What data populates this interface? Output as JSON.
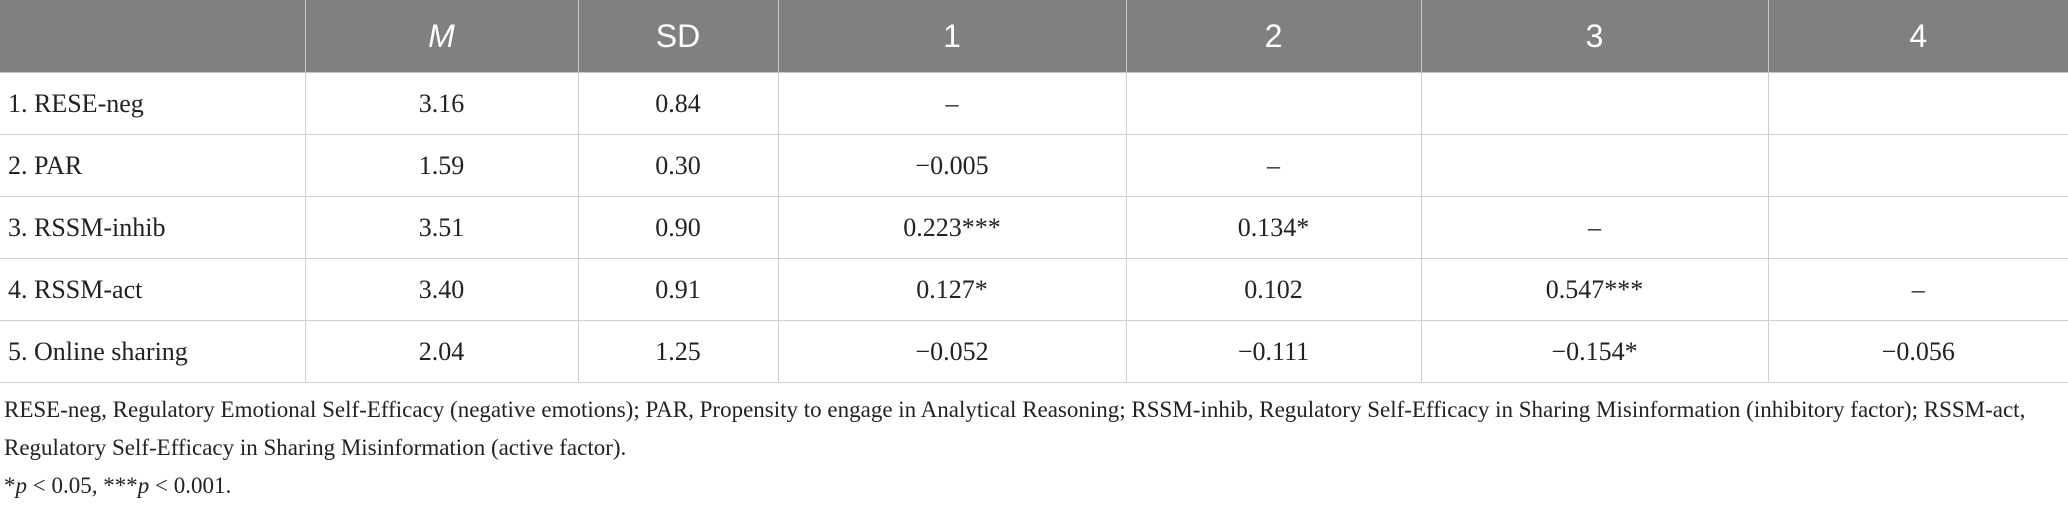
{
  "table": {
    "headers": [
      {
        "label": "M",
        "italic": true
      },
      {
        "label": "SD",
        "italic": false
      },
      {
        "label": "1",
        "italic": false
      },
      {
        "label": "2",
        "italic": false
      },
      {
        "label": "3",
        "italic": false
      },
      {
        "label": "4",
        "italic": false
      }
    ],
    "rows": [
      {
        "label": "1. RESE-neg",
        "cells": [
          "3.16",
          "0.84",
          "–",
          "",
          "",
          ""
        ]
      },
      {
        "label": "2. PAR",
        "cells": [
          "1.59",
          "0.30",
          "−0.005",
          "–",
          "",
          ""
        ]
      },
      {
        "label": "3. RSSM-inhib",
        "cells": [
          "3.51",
          "0.90",
          "0.223***",
          "0.134*",
          "–",
          ""
        ]
      },
      {
        "label": "4. RSSM-act",
        "cells": [
          "3.40",
          "0.91",
          "0.127*",
          "0.102",
          "0.547***",
          "–"
        ]
      },
      {
        "label": "5. Online sharing",
        "cells": [
          "2.04",
          "1.25",
          "−0.052",
          "−0.111",
          "−0.154*",
          "−0.056"
        ]
      }
    ]
  },
  "notes": {
    "abbreviations": "RESE-neg, Regulatory Emotional Self-Efficacy (negative emotions); PAR, Propensity to engage in Analytical Reasoning; RSSM-inhib, Regulatory Self-Efficacy in Sharing Misinformation (inhibitory factor); RSSM-act, Regulatory Self-Efficacy in Sharing Misinformation (active factor).",
    "significance": {
      "star1": "*",
      "p1": "p",
      "rest1": " < 0.05, ",
      "star2": "***",
      "p2": "p",
      "rest2": " < 0.001."
    }
  }
}
